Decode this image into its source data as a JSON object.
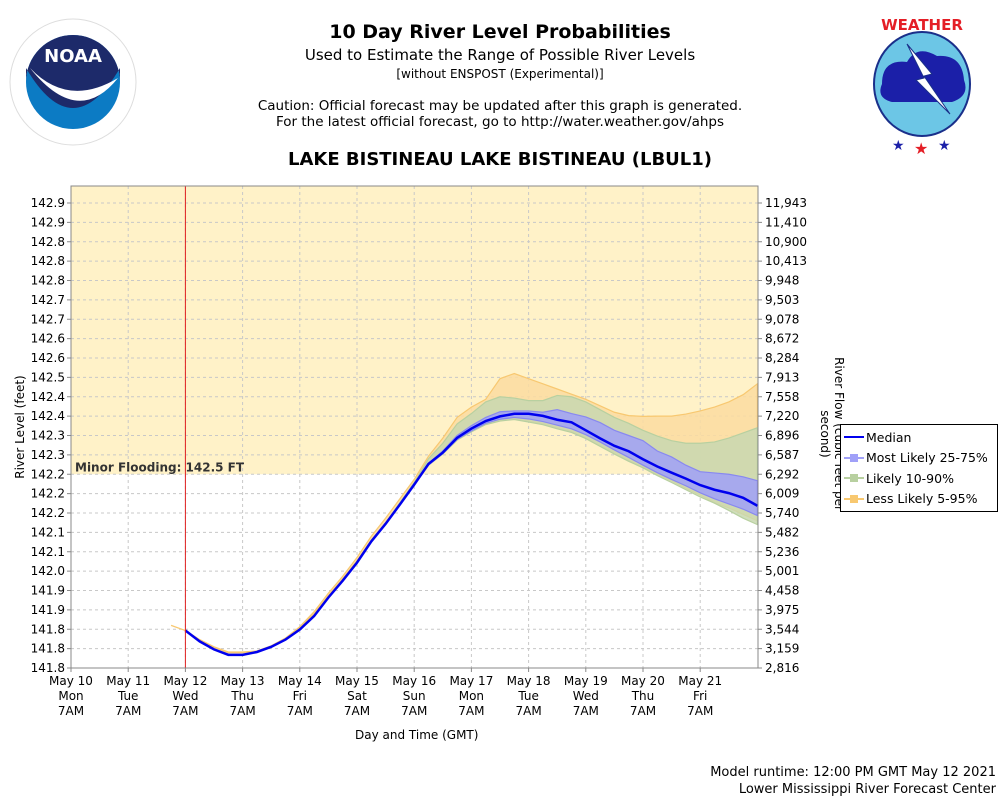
{
  "header": {
    "title": "10 Day River Level Probabilities",
    "subtitle": "Used to Estimate the Range of Possible River Levels",
    "subtitle2": "[without ENSPOST (Experimental)]",
    "caution1": "Caution: Official forecast may be updated after this graph is generated.",
    "caution2": "For the latest official forecast, go to http://water.weather.gov/ahps",
    "station": "LAKE BISTINEAU LAKE BISTINEAU (LBUL1)"
  },
  "logos": {
    "left": "noaa-logo",
    "left_text": "NOAA",
    "right": "nws-logo"
  },
  "footer": {
    "runtime": "Model runtime: 12:00 PM GMT May 12 2021",
    "center": "Lower Mississippi River Forecast Center"
  },
  "colors": {
    "median": "#0000ee",
    "band_25_75": "#a0a0f8",
    "band_10_90": "#c8d8b0",
    "band_5_95": "#fcdca0",
    "flood_zone": "#fff2c8",
    "now_line": "#e02020",
    "grid": "#c8c8c8"
  },
  "chart_data": {
    "type": "area",
    "title": "10 Day River Level Probabilities",
    "xlabel": "Day and Time (GMT)",
    "ylabel": "River Level (feet)",
    "y2label": "River Flow (cubic feet per second)",
    "x_units": "days since May 10 7AM",
    "xlim": [
      0,
      12
    ],
    "ylim": [
      141.75,
      142.95
    ],
    "grid": true,
    "legend_position": "right",
    "x_ticks": [
      {
        "x": 0,
        "date": "May 10",
        "day": "Mon",
        "time": "7AM"
      },
      {
        "x": 1,
        "date": "May 11",
        "day": "Tue",
        "time": "7AM"
      },
      {
        "x": 2,
        "date": "May 12",
        "day": "Wed",
        "time": "7AM"
      },
      {
        "x": 3,
        "date": "May 13",
        "day": "Thu",
        "time": "7AM"
      },
      {
        "x": 4,
        "date": "May 14",
        "day": "Fri",
        "time": "7AM"
      },
      {
        "x": 5,
        "date": "May 15",
        "day": "Sat",
        "time": "7AM"
      },
      {
        "x": 6,
        "date": "May 16",
        "day": "Sun",
        "time": "7AM"
      },
      {
        "x": 7,
        "date": "May 17",
        "day": "Mon",
        "time": "7AM"
      },
      {
        "x": 8,
        "date": "May 18",
        "day": "Tue",
        "time": "7AM"
      },
      {
        "x": 9,
        "date": "May 19",
        "day": "Wed",
        "time": "7AM"
      },
      {
        "x": 10,
        "date": "May 20",
        "day": "Thu",
        "time": "7AM"
      },
      {
        "x": 11,
        "date": "May 21",
        "day": "Fri",
        "time": "7AM"
      }
    ],
    "y_ticks": [
      {
        "y": 141.75,
        "label": "141.8",
        "flow": "2,816"
      },
      {
        "y": 141.825,
        "label": "141.8",
        "flow": "3,159"
      },
      {
        "y": 141.9,
        "label": "141.8",
        "flow": "3,544"
      },
      {
        "y": 141.975,
        "label": "141.9",
        "flow": "3,975"
      },
      {
        "y": 142.05,
        "label": "141.9",
        "flow": "4,458"
      },
      {
        "y": 142.125,
        "label": "142.0",
        "flow": "5,001"
      },
      {
        "y": 142.2,
        "label": "142.1",
        "flow": "5,236"
      },
      {
        "y": 142.275,
        "label": "142.1",
        "flow": "5,482"
      },
      {
        "y": 142.35,
        "label": "142.2",
        "flow": "5,740"
      },
      {
        "y": 142.425,
        "label": "142.2",
        "flow": "6,009"
      },
      {
        "y": 142.5,
        "label": "142.2",
        "flow": "6,292"
      },
      {
        "y": 142.575,
        "label": "142.3",
        "flow": "6,587"
      },
      {
        "y": 142.65,
        "label": "142.3",
        "flow": "6,896"
      },
      {
        "y": 142.725,
        "label": "142.4",
        "flow": "7,220"
      },
      {
        "y": 142.8,
        "label": "142.4",
        "flow": "7,558"
      },
      {
        "y": 142.875,
        "label": "142.5",
        "flow": "7,913"
      },
      {
        "y": 142.95,
        "label": "142.6",
        "flow": "8,284"
      }
    ],
    "y_ticks_upper": [
      {
        "label": "142.6",
        "flow": "8,672"
      },
      {
        "label": "142.7",
        "flow": "9,078"
      },
      {
        "label": "142.7",
        "flow": "9,503"
      },
      {
        "label": "142.8",
        "flow": "9,948"
      },
      {
        "label": "142.8",
        "flow": "10,413"
      },
      {
        "label": "142.8",
        "flow": "10,900"
      },
      {
        "label": "142.9",
        "flow": "11,410"
      },
      {
        "label": "142.9",
        "flow": "11,943"
      }
    ],
    "flood_stage": {
      "label": "Minor Flooding: 142.5 FT",
      "value": 142.5
    },
    "now_x": 2,
    "legend": [
      {
        "name": "Median",
        "kind": "line"
      },
      {
        "name": "Most Likely 25-75%",
        "kind": "band"
      },
      {
        "name": "Likely 10-90%",
        "kind": "band"
      },
      {
        "name": "Less Likely 5-95%",
        "kind": "band"
      }
    ],
    "x": [
      1.75,
      2.0,
      2.25,
      2.5,
      2.75,
      3.0,
      3.25,
      3.5,
      3.75,
      4.0,
      4.25,
      4.5,
      4.75,
      5.0,
      5.25,
      5.5,
      5.75,
      6.0,
      6.25,
      6.5,
      6.75,
      7.0,
      7.25,
      7.5,
      7.75,
      8.0,
      8.25,
      8.5,
      8.75,
      9.0,
      9.25,
      9.5,
      9.75,
      10.0,
      10.25,
      10.5,
      10.75,
      11.0,
      11.25,
      11.5,
      11.75,
      12.0
    ],
    "series": [
      {
        "name": "Median",
        "values": [
          null,
          141.895,
          141.853,
          141.822,
          141.801,
          141.801,
          141.812,
          141.832,
          141.86,
          141.899,
          141.951,
          142.023,
          142.088,
          142.158,
          142.24,
          142.308,
          142.383,
          142.46,
          142.54,
          142.584,
          142.641,
          142.677,
          142.706,
          142.724,
          142.734,
          142.734,
          142.726,
          142.711,
          142.701,
          142.67,
          142.639,
          142.61,
          142.589,
          142.558,
          142.53,
          142.506,
          142.483,
          142.458,
          142.44,
          142.427,
          142.409,
          142.378
        ]
      },
      {
        "name": "5%",
        "values": [
          141.915,
          141.895,
          141.858,
          141.83,
          141.809,
          141.809,
          141.812,
          141.832,
          141.862,
          141.905,
          141.96,
          142.03,
          142.095,
          142.165,
          142.245,
          142.31,
          142.385,
          142.46,
          142.535,
          142.58,
          142.635,
          142.668,
          142.695,
          142.71,
          142.716,
          142.706,
          142.696,
          142.68,
          142.665,
          142.64,
          142.61,
          142.58,
          142.553,
          142.53,
          142.5,
          142.475,
          142.445,
          142.42,
          142.39,
          142.37,
          142.345,
          142.32
        ]
      },
      {
        "name": "25%",
        "values": [
          null,
          141.895,
          141.853,
          141.822,
          141.801,
          141.801,
          141.812,
          141.832,
          141.86,
          141.899,
          141.951,
          142.023,
          142.088,
          142.158,
          142.24,
          142.308,
          142.383,
          142.46,
          142.535,
          142.58,
          142.635,
          142.668,
          142.697,
          142.713,
          142.72,
          142.714,
          142.704,
          142.69,
          142.676,
          142.653,
          142.625,
          142.594,
          142.565,
          142.535,
          142.506,
          142.48,
          142.455,
          142.428,
          142.405,
          142.385,
          142.365,
          142.34
        ]
      },
      {
        "name": "75%",
        "values": [
          null,
          141.895,
          141.853,
          141.822,
          141.801,
          141.801,
          141.812,
          141.832,
          141.86,
          141.899,
          141.951,
          142.023,
          142.088,
          142.158,
          142.24,
          142.308,
          142.383,
          142.46,
          142.542,
          142.59,
          142.65,
          142.688,
          142.72,
          142.742,
          142.745,
          142.745,
          142.74,
          142.75,
          142.735,
          142.722,
          142.7,
          142.67,
          142.65,
          142.63,
          142.59,
          142.567,
          142.535,
          142.51,
          142.505,
          142.5,
          142.49,
          142.475
        ]
      },
      {
        "name": "10%",
        "values": [
          null,
          141.895,
          141.853,
          141.822,
          141.801,
          141.801,
          141.812,
          141.832,
          141.86,
          141.899,
          141.951,
          142.023,
          142.088,
          142.158,
          142.24,
          142.308,
          142.383,
          142.46,
          142.535,
          142.578,
          142.632,
          142.664,
          142.692,
          142.706,
          142.712,
          142.702,
          142.692,
          142.676,
          142.662,
          142.638,
          142.608,
          142.578,
          142.55,
          142.525,
          142.495,
          142.468,
          142.44,
          142.412,
          142.388,
          142.36,
          142.33,
          142.305
        ]
      },
      {
        "name": "90%",
        "values": [
          null,
          141.895,
          141.853,
          141.822,
          141.801,
          141.801,
          141.812,
          141.832,
          141.86,
          141.899,
          141.951,
          142.023,
          142.088,
          142.158,
          142.24,
          142.31,
          142.39,
          142.468,
          142.56,
          142.62,
          142.695,
          142.735,
          142.78,
          142.8,
          142.795,
          142.785,
          142.785,
          142.805,
          142.8,
          142.78,
          142.75,
          142.72,
          142.697,
          142.67,
          142.648,
          142.63,
          142.62,
          142.62,
          142.625,
          142.64,
          142.66,
          142.68
        ]
      },
      {
        "name": "95%",
        "values": [
          141.915,
          141.895,
          141.86,
          141.832,
          141.812,
          141.812,
          141.816,
          141.836,
          141.866,
          141.91,
          141.968,
          142.04,
          142.105,
          142.178,
          142.26,
          142.33,
          142.405,
          142.48,
          142.57,
          142.64,
          142.72,
          142.76,
          142.79,
          142.87,
          142.89,
          142.87,
          142.85,
          142.83,
          142.81,
          142.79,
          142.765,
          142.74,
          142.727,
          142.724,
          142.725,
          142.725,
          142.733,
          142.745,
          142.76,
          142.78,
          142.808,
          142.85
        ]
      }
    ]
  }
}
